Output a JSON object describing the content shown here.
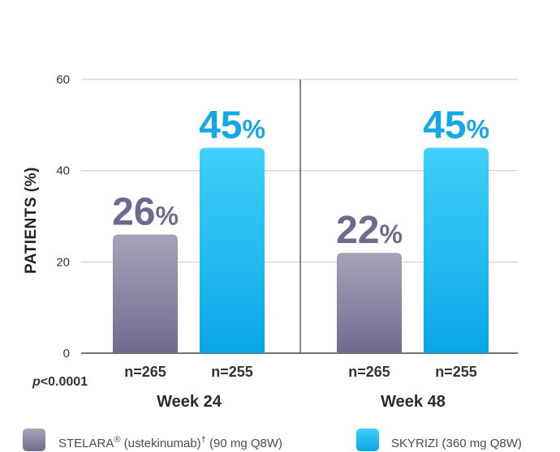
{
  "chart_data": {
    "type": "bar",
    "ylabel": "PATIENTS (%)",
    "ylim": [
      0,
      60
    ],
    "yticks": [
      "0",
      "20",
      "40",
      "60"
    ],
    "grid": true,
    "p_value_prefix": "p",
    "p_value_rest": "<0.0001",
    "groups": [
      {
        "label": "Week 24",
        "bars": [
          {
            "series": 0,
            "value": 26,
            "value_text": "26",
            "pct": "%",
            "n": "n=265"
          },
          {
            "series": 1,
            "value": 45,
            "value_text": "45",
            "pct": "%",
            "n": "n=255"
          }
        ]
      },
      {
        "label": "Week 48",
        "bars": [
          {
            "series": 0,
            "value": 22,
            "value_text": "22",
            "pct": "%",
            "n": "n=265"
          },
          {
            "series": 1,
            "value": 45,
            "value_text": "45",
            "pct": "%",
            "n": "n=255"
          }
        ]
      }
    ],
    "series": [
      {
        "name": "STELARA® (ustekinumab)† (90 mg Q8W)",
        "name_main": "STELARA",
        "name_reg": "®",
        "name_mid": " (ustekinumab)",
        "name_dagger": "†",
        "name_end": " (90 mg Q8W)",
        "color_top": "#a6a3b9",
        "color_bottom": "#6f6b8e",
        "label_color": "#6d6a8d"
      },
      {
        "name": "SKYRIZI (360 mg Q8W)",
        "color_top": "#3fd0fb",
        "color_bottom": "#09a6e6",
        "label_color": "#12a7e6"
      }
    ],
    "legend_position": "bottom"
  }
}
